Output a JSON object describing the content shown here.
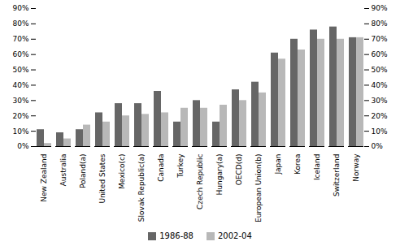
{
  "chart_data": {
    "type": "bar",
    "categories": [
      "New Zealand",
      "Australia",
      "Poland(a)",
      "United States",
      "Mexico(c)",
      "Slovak Republic(a)",
      "Canada",
      "Turkey",
      "Czech Republic",
      "Hungary(a)",
      "OECD(d)",
      "European Union(b)",
      "Japan",
      "Korea",
      "Iceland",
      "Switzerland",
      "Norway"
    ],
    "series": [
      {
        "name": "1986-88",
        "color": "#666666",
        "values": [
          11,
          9,
          11,
          22,
          28,
          28,
          36,
          16,
          30,
          16,
          37,
          42,
          61,
          70,
          76,
          78,
          71
        ]
      },
      {
        "name": "2002-04",
        "color": "#b8b8b8",
        "values": [
          2,
          5,
          14,
          16,
          20,
          21,
          22,
          25,
          25,
          27,
          30,
          35,
          57,
          63,
          70,
          70,
          71
        ]
      }
    ],
    "ylim": [
      0,
      90
    ],
    "yticks": [
      {
        "value": 0,
        "label": "0%"
      },
      {
        "value": 10,
        "label": "10%"
      },
      {
        "value": 20,
        "label": "20%"
      },
      {
        "value": 30,
        "label": "30%"
      },
      {
        "value": 40,
        "label": "40%"
      },
      {
        "value": 50,
        "label": "50%"
      },
      {
        "value": 60,
        "label": "60%"
      },
      {
        "value": 70,
        "label": "70%"
      },
      {
        "value": 80,
        "label": "80%"
      },
      {
        "value": 90,
        "label": "90%"
      }
    ],
    "y2lim": [
      0,
      90
    ],
    "y2ticks": [
      {
        "value": 0,
        "label": "0%"
      },
      {
        "value": 10,
        "label": "10%"
      },
      {
        "value": 20,
        "label": "20%"
      },
      {
        "value": 30,
        "label": "30%"
      },
      {
        "value": 40,
        "label": "40%"
      },
      {
        "value": 50,
        "label": "50%"
      },
      {
        "value": 60,
        "label": "60%"
      },
      {
        "value": 70,
        "label": "70%"
      },
      {
        "value": 80,
        "label": "80%"
      },
      {
        "value": 90,
        "label": "90%"
      }
    ],
    "grid": false,
    "legend": "bottom"
  }
}
